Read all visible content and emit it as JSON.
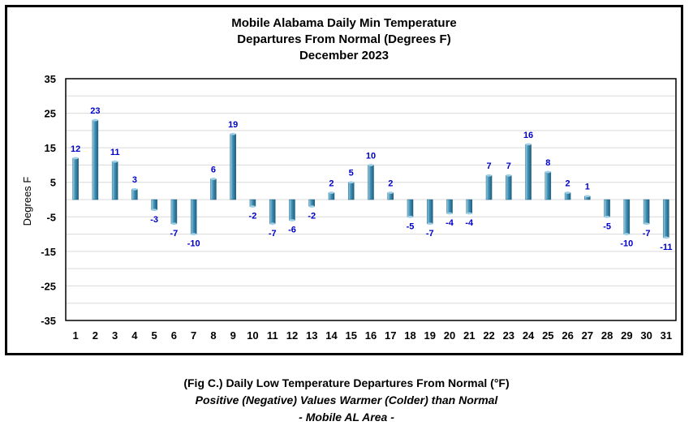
{
  "chart_data": {
    "type": "bar",
    "title_lines": [
      "Mobile Alabama Daily Min Temperature",
      "Departures From Normal (Degrees F)",
      "December 2023"
    ],
    "ylabel": "Degrees F",
    "xlabel": "",
    "ylim": [
      -35,
      35
    ],
    "yticks": [
      35,
      25,
      15,
      5,
      -5,
      -15,
      -25,
      -35
    ],
    "grid": true,
    "categories": [
      "1",
      "2",
      "3",
      "4",
      "5",
      "6",
      "7",
      "8",
      "9",
      "10",
      "11",
      "12",
      "13",
      "14",
      "15",
      "16",
      "17",
      "18",
      "19",
      "20",
      "21",
      "22",
      "23",
      "24",
      "25",
      "26",
      "27",
      "28",
      "29",
      "30",
      "31"
    ],
    "values": [
      12,
      23,
      11,
      3,
      -3,
      -7,
      -10,
      6,
      19,
      -2,
      -7,
      -6,
      -2,
      2,
      5,
      10,
      2,
      -5,
      -7,
      -4,
      -4,
      7,
      7,
      16,
      8,
      2,
      1,
      -5,
      -10,
      -7,
      -11
    ],
    "colors": {
      "bar": "#3f8fb5",
      "bar_light": "#9fd0e6",
      "bar_dark": "#1f5f80",
      "label": "#0000cc",
      "grid": "#d9d9d9"
    }
  },
  "caption": {
    "line1": "(Fig C.) Daily Low Temperature Departures From Normal (°F)",
    "line2": "Positive (Negative) Values Warmer (Colder) than Normal",
    "line3": "- Mobile AL Area -"
  }
}
